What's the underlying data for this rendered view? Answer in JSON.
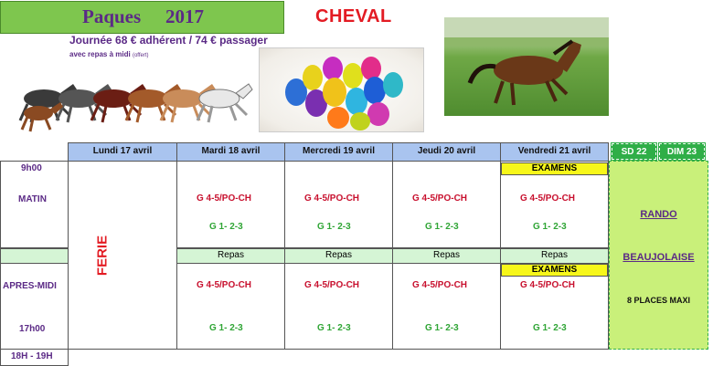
{
  "header": {
    "title": "Paques",
    "year": "2017",
    "subject": "CHEVAL",
    "price_line": "Journée 68 € adhérent / 74 € passager",
    "meal_line": "avec repas à midi",
    "meal_note": "(offert)"
  },
  "days": [
    "Lundi 17 avril",
    "Mardi 18 avril",
    "Mercredi 19 avril",
    "Jeudi 20 avril",
    "Vendredi 21 avril"
  ],
  "weekend_days": [
    "SD 22",
    "DIM 23"
  ],
  "times": {
    "start": "9h00",
    "morning": "MATIN",
    "afternoon": "APRES-MIDI",
    "end": "17h00",
    "evening": "18H - 19H"
  },
  "holiday_label": "FERIE",
  "sessions": {
    "group_a": "G 4-5/PO-CH",
    "group_b": "G 1- 2-3"
  },
  "meal_label": "Repas",
  "exam_label": "EXAMENS",
  "weekend": {
    "line1": "RANDO",
    "line2": "BEAUJOLAISE",
    "line3": "8 PLACES MAXI"
  },
  "colors": {
    "title_bg": "#7ec64e",
    "day_header_bg": "#a9c4ef",
    "weekend_header_bg": "#2fae47",
    "weekend_bg": "#c9f07a",
    "meal_bg": "#d5f5d5",
    "exam_bg": "#f7f71a"
  }
}
